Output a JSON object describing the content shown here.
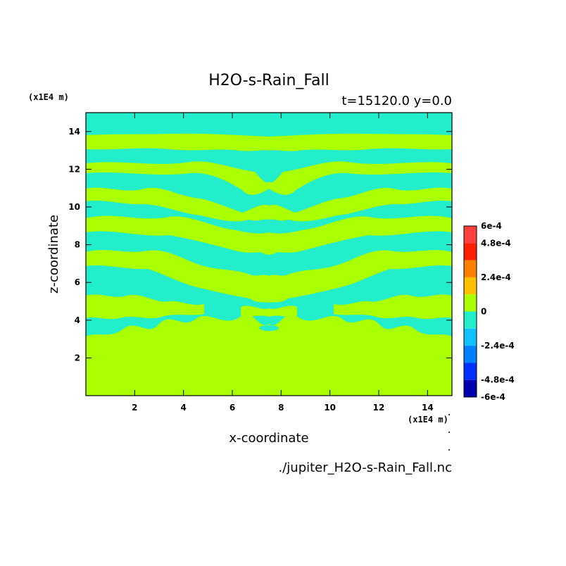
{
  "chart_data": {
    "type": "heatmap",
    "title": "H2O-s-Rain_Fall",
    "subtitle": "t=15120.0 y=0.0",
    "xlabel": "x-coordinate",
    "ylabel": "z-coordinate",
    "x_unit": "(x1E4 m)",
    "z_unit": "(x1E4 m)",
    "source": "./jupiter_H2O-s-Rain_Fall.nc",
    "xlim": [
      0,
      15
    ],
    "ylim": [
      0,
      15
    ],
    "x_ticks": [
      2,
      4,
      6,
      8,
      10,
      12,
      14
    ],
    "y_ticks": [
      2,
      4,
      6,
      8,
      10,
      12,
      14
    ],
    "x_tick_labels": [
      "2",
      "4",
      "6",
      "8",
      "10",
      "12",
      "14"
    ],
    "y_tick_labels": [
      "2",
      "4",
      "6",
      "8",
      "10",
      "12",
      "14"
    ],
    "colorbar": {
      "range": [
        -0.0006,
        0.0006
      ],
      "labels": [
        {
          "value": 0.0006,
          "text": "6e-4"
        },
        {
          "value": 0.00048,
          "text": "4.8e-4"
        },
        {
          "value": 0.00024,
          "text": "2.4e-4"
        },
        {
          "value": 0,
          "text": "0"
        },
        {
          "value": -0.00024,
          "text": "-2.4e-4"
        },
        {
          "value": -0.00048,
          "text": "-4.8e-4"
        },
        {
          "value": -0.0006,
          "text": "-6e-4"
        }
      ],
      "bands": [
        {
          "from": 0.00048,
          "to": 0.0006,
          "color": "#ff4040"
        },
        {
          "from": 0.00036,
          "to": 0.00048,
          "color": "#ff2000"
        },
        {
          "from": 0.00024,
          "to": 0.00036,
          "color": "#ff8000"
        },
        {
          "from": 0.00012,
          "to": 0.00024,
          "color": "#ffc000"
        },
        {
          "from": 0,
          "to": 0.00012,
          "color": "#aaff00"
        },
        {
          "from": -0.00012,
          "to": 0,
          "color": "#22eecc"
        },
        {
          "from": -0.00024,
          "to": -0.00012,
          "color": "#10c0ff"
        },
        {
          "from": -0.00036,
          "to": -0.00024,
          "color": "#0080ff"
        },
        {
          "from": -0.00048,
          "to": -0.00036,
          "color": "#0030ff"
        },
        {
          "from": -0.0006,
          "to": -0.00048,
          "color": "#0000b0"
        }
      ]
    },
    "field_colors": {
      "positive_small": "#aaff00",
      "negative_small": "#22eecc"
    },
    "regions": [
      {
        "z_from": 0,
        "z_to": 3.2,
        "dominant": "positive_small"
      },
      {
        "z_from": 3.2,
        "z_to": 13.2,
        "dominant": "mixed"
      },
      {
        "z_from": 13.2,
        "z_to": 15,
        "dominant": "negative_small"
      }
    ],
    "grid": false,
    "legend": "right colorbar"
  }
}
